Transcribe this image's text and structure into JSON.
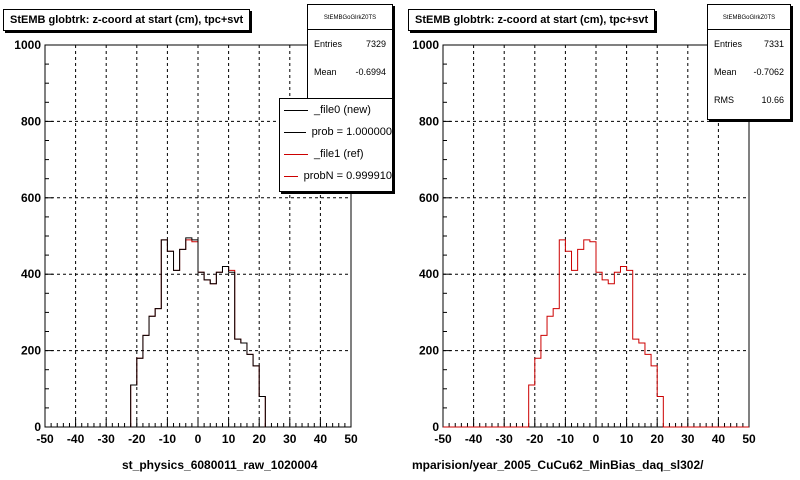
{
  "chart_data": [
    {
      "type": "line",
      "title": "StEMB globtrk: z-coord at start (cm), tpc+svt",
      "xlabel": "st_physics_6080011_raw_1020004",
      "ylabel": "",
      "xlim": [
        -50,
        50
      ],
      "ylim": [
        0,
        1000
      ],
      "xticks": [
        "-50",
        "-40",
        "-30",
        "-20",
        "-10",
        "0",
        "10",
        "20",
        "30",
        "40",
        "50"
      ],
      "yticks": [
        "0",
        "200",
        "400",
        "600",
        "800",
        "1000"
      ],
      "grid": true,
      "stats": {
        "name": "StEMBGoGlrkZ0TS",
        "rows": [
          {
            "label": "Entries",
            "value": "7329"
          },
          {
            "label": "Mean",
            "value": "-0.6994"
          }
        ]
      },
      "legend": {
        "position": "top-right",
        "entries": [
          {
            "label": "_file0 (new)",
            "color": "#000000"
          },
          {
            "label": "prob = 1.000000",
            "color": "#000000"
          },
          {
            "label": "_file1 (ref)",
            "color": "#cc0000"
          },
          {
            "label": "probN = 0.999910",
            "color": "#cc0000"
          }
        ]
      },
      "bin_edges": [
        -50,
        48
      ],
      "bin_width": 2,
      "series": [
        {
          "name": "_file0 (new)",
          "color": "#000000",
          "values": [
            0,
            0,
            0,
            0,
            0,
            0,
            0,
            0,
            0,
            0,
            0,
            0,
            0,
            0,
            110,
            180,
            240,
            290,
            310,
            490,
            460,
            410,
            465,
            495,
            490,
            405,
            385,
            375,
            405,
            420,
            405,
            230,
            220,
            190,
            160,
            80,
            0,
            0,
            0,
            0,
            0,
            0,
            0,
            0,
            0,
            0,
            0,
            0,
            0,
            0
          ]
        },
        {
          "name": "_file1 (ref)",
          "color": "#cc0000",
          "values": [
            0,
            0,
            0,
            0,
            0,
            0,
            0,
            0,
            0,
            0,
            0,
            0,
            0,
            0,
            110,
            180,
            240,
            290,
            310,
            490,
            460,
            410,
            465,
            490,
            485,
            405,
            385,
            375,
            405,
            420,
            410,
            230,
            220,
            190,
            160,
            80,
            0,
            0,
            0,
            0,
            0,
            0,
            0,
            0,
            0,
            0,
            0,
            0,
            0,
            0
          ]
        }
      ]
    },
    {
      "type": "line",
      "title": "StEMB globtrk: z-coord at start (cm), tpc+svt",
      "xlabel": "mparision/year_2005_CuCu62_MinBias_daq_sl302/",
      "ylabel": "",
      "xlim": [
        -50,
        50
      ],
      "ylim": [
        0,
        1000
      ],
      "xticks": [
        "-50",
        "-40",
        "-30",
        "-20",
        "-10",
        "0",
        "10",
        "20",
        "30",
        "40",
        "50"
      ],
      "yticks": [
        "0",
        "200",
        "400",
        "600",
        "800",
        "1000"
      ],
      "grid": true,
      "stats": {
        "name": "StEMBGoGlrkZ0TS",
        "rows": [
          {
            "label": "Entries",
            "value": "7331"
          },
          {
            "label": "Mean",
            "value": "-0.7062"
          },
          {
            "label": "RMS",
            "value": "10.66"
          }
        ]
      },
      "series": [
        {
          "name": "_file1 (ref)",
          "color": "#cc0000",
          "values": [
            0,
            0,
            0,
            0,
            0,
            0,
            0,
            0,
            0,
            0,
            0,
            0,
            0,
            0,
            110,
            180,
            240,
            290,
            310,
            490,
            460,
            410,
            465,
            490,
            485,
            405,
            385,
            375,
            405,
            420,
            410,
            230,
            220,
            190,
            160,
            80,
            0,
            0,
            0,
            0,
            0,
            0,
            0,
            0,
            0,
            0,
            0,
            0,
            0,
            0
          ]
        }
      ]
    }
  ]
}
